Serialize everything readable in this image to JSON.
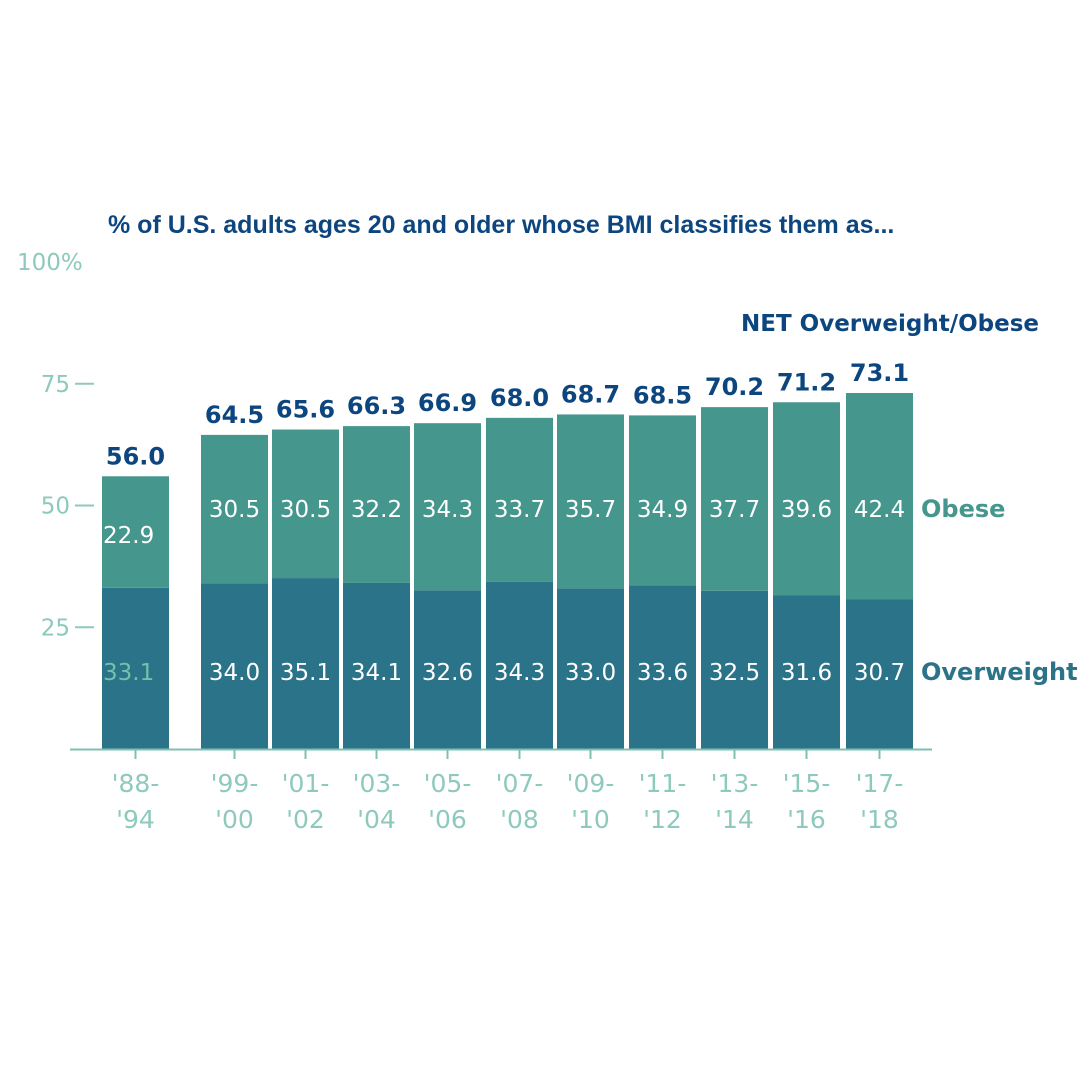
{
  "chart_data": {
    "type": "bar",
    "stacked": true,
    "title": "% of U.S. adults ages 20 and older whose BMI classifies them as...",
    "categories": [
      [
        "'88-",
        "'94"
      ],
      [
        "'99-",
        "'00"
      ],
      [
        "'01-",
        "'02"
      ],
      [
        "'03-",
        "'04"
      ],
      [
        "'05-",
        "'06"
      ],
      [
        "'07-",
        "'08"
      ],
      [
        "'09-",
        "'10"
      ],
      [
        "'11-",
        "'12"
      ],
      [
        "'13-",
        "'14"
      ],
      [
        "'15-",
        "'16"
      ],
      [
        "'17-",
        "'18"
      ]
    ],
    "series": [
      {
        "name": "Overweight",
        "color": "#2b7389",
        "values": [
          "33.1",
          "34.0",
          "35.1",
          "34.1",
          "32.6",
          "34.3",
          "33.0",
          "33.6",
          "32.5",
          "31.6",
          "30.7"
        ]
      },
      {
        "name": "Obese",
        "color": "#45968c",
        "values": [
          "22.9",
          "30.5",
          "30.5",
          "32.2",
          "34.3",
          "33.7",
          "35.7",
          "34.9",
          "37.7",
          "39.6",
          "42.4"
        ]
      }
    ],
    "totals": {
      "name": "NET Overweight/Obese",
      "values": [
        "56.0",
        "64.5",
        "65.6",
        "66.3",
        "66.9",
        "68.0",
        "68.7",
        "68.5",
        "70.2",
        "71.2",
        "73.1"
      ]
    },
    "y_ticks": [
      {
        "value": 25,
        "label": "25"
      },
      {
        "value": 50,
        "label": "50"
      },
      {
        "value": 75,
        "label": "75"
      },
      {
        "value": 100,
        "label": "100%"
      }
    ],
    "ylim": [
      0,
      100
    ],
    "grid": false,
    "legend": "right"
  }
}
